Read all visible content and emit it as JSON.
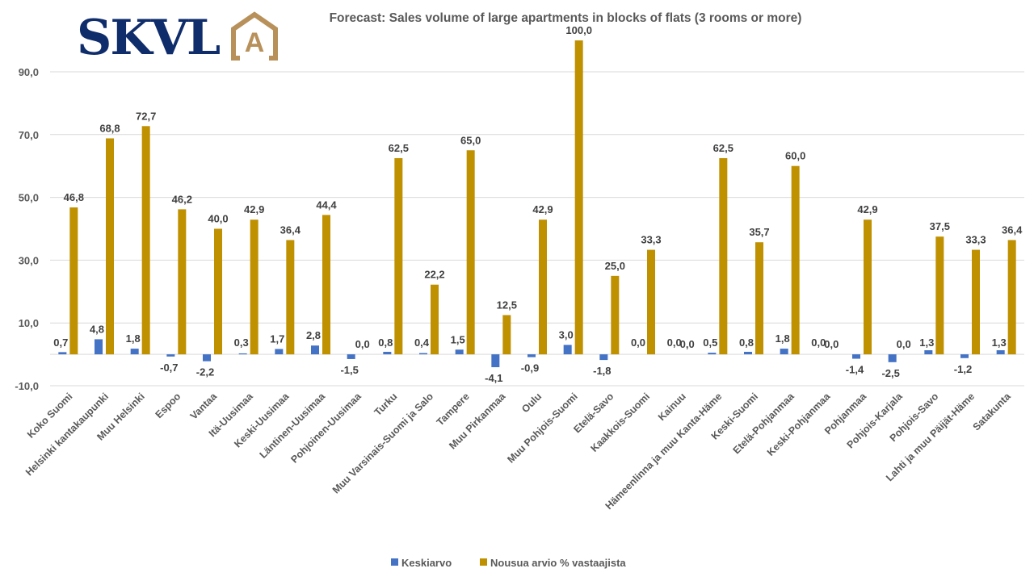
{
  "logo": {
    "text": "SKVL",
    "mark": "A",
    "text_color": "#0f2d6b",
    "mark_color": "#b8915a"
  },
  "chart_data": {
    "type": "bar",
    "title": "Forecast: Sales volume of large apartments in blocks of flats (3 rooms or more)",
    "xlabel": "",
    "ylabel": "",
    "ylim": [
      -10,
      100
    ],
    "yticks": [
      -10,
      10,
      30,
      50,
      70,
      90
    ],
    "ytick_labels": [
      "-10,0",
      "10,0",
      "30,0",
      "50,0",
      "70,0",
      "90,0"
    ],
    "grid": true,
    "legend_position": "bottom",
    "categories": [
      "Koko Suomi",
      "Helsinki kantakaupunki",
      "Muu Helsinki",
      "Espoo",
      "Vantaa",
      "Itä-Uusimaa",
      "Keski-Uusimaa",
      "Läntinen-Uusimaa",
      "Pohjoinen-Uusimaa",
      "Turku",
      "Muu Varsinais-Suomi ja Salo",
      "Tampere",
      "Muu Pirkanmaa",
      "Oulu",
      "Muu Pohjois-Suomi",
      "Etelä-Savo",
      "Kaakkois-Suomi",
      "Kainuu",
      "Hämeenlinna ja muu Kanta-Häme",
      "Keski-Suomi",
      "Etelä-Pohjanmaa",
      "Keski-Pohjanmaa",
      "Pohjanmaa",
      "Pohjois-Karjala",
      "Pohjois-Savo",
      "Lahti ja muu Päijät-Häme",
      "Satakunta"
    ],
    "series": [
      {
        "name": "Keskiarvo",
        "color": "#4472c4",
        "values": [
          0.7,
          4.8,
          1.8,
          -0.7,
          -2.2,
          0.3,
          1.7,
          2.8,
          -1.5,
          0.8,
          0.4,
          1.5,
          -4.1,
          -0.9,
          3.0,
          -1.8,
          0.0,
          0.0,
          0.5,
          0.8,
          1.8,
          0.0,
          -1.4,
          -2.5,
          1.3,
          -1.2,
          1.3
        ],
        "labels": [
          "0,7",
          "4,8",
          "1,8",
          "-0,7",
          "-2,2",
          "0,3",
          "1,7",
          "2,8",
          "-1,5",
          "0,8",
          "0,4",
          "1,5",
          "-4,1",
          "-0,9",
          "3,0",
          "-1,8",
          "0,0",
          "0,0",
          "0,5",
          "0,8",
          "1,8",
          "0,0",
          "-1,4",
          "-2,5",
          "1,3",
          "-1,2",
          "1,3"
        ]
      },
      {
        "name": "Nousua arvio % vastaajista",
        "color": "#bf9000",
        "values": [
          46.8,
          68.8,
          72.7,
          46.2,
          40.0,
          42.9,
          36.4,
          44.4,
          0.0,
          62.5,
          22.2,
          65.0,
          12.5,
          42.9,
          100.0,
          25.0,
          33.3,
          0.0,
          62.5,
          35.7,
          60.0,
          0.0,
          42.9,
          0.0,
          37.5,
          33.3,
          36.4
        ],
        "labels": [
          "46,8",
          "68,8",
          "72,7",
          "46,2",
          "40,0",
          "42,9",
          "36,4",
          "44,4",
          "0,0",
          "62,5",
          "22,2",
          "65,0",
          "12,5",
          "42,9",
          "100,0",
          "25,0",
          "33,3",
          "0,0",
          "62,5",
          "35,7",
          "60,0",
          "0,0",
          "42,9",
          "0,0",
          "37,5",
          "33,3",
          "36,4"
        ]
      }
    ]
  }
}
